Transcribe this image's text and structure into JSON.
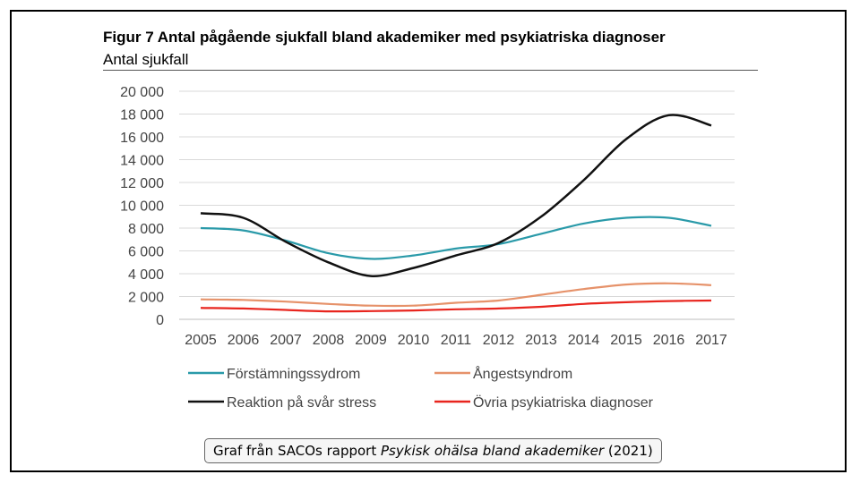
{
  "caption": {
    "prefix": "Graf från SACOs rapport",
    "report_title": "Psykisk ohälsa bland akademiker",
    "suffix": "(2021)"
  },
  "chart_data": {
    "type": "line",
    "title": "Figur 7 Antal pågående sjukfall bland akademiker med psykiatriska diagnoser",
    "subtitle": "Antal sjukfall",
    "x": [
      2005,
      2006,
      2007,
      2008,
      2009,
      2010,
      2011,
      2012,
      2013,
      2014,
      2015,
      2016,
      2017
    ],
    "ylim": [
      0,
      20000
    ],
    "y_ticks": [
      0,
      2000,
      4000,
      6000,
      8000,
      10000,
      12000,
      14000,
      16000,
      18000,
      20000
    ],
    "y_tick_labels": [
      "0",
      "2 000",
      "4 000",
      "6 000",
      "8 000",
      "10 000",
      "12 000",
      "14 000",
      "16 000",
      "18 000",
      "20 000"
    ],
    "grid": "horizontal",
    "legend_position": "bottom",
    "series": [
      {
        "name": "Förstämningssydrom",
        "color": "#2a9aa9",
        "values": [
          8000,
          7800,
          6900,
          5800,
          5300,
          5600,
          6200,
          6600,
          7500,
          8400,
          8900,
          8900,
          8200
        ]
      },
      {
        "name": "Ångestsyndrom",
        "color": "#e6926a",
        "values": [
          1750,
          1700,
          1550,
          1350,
          1200,
          1200,
          1450,
          1650,
          2150,
          2650,
          3050,
          3150,
          3000
        ]
      },
      {
        "name": "Reaktion på svår stress",
        "color": "#111111",
        "values": [
          9300,
          8900,
          6800,
          5000,
          3800,
          4500,
          5600,
          6700,
          9000,
          12200,
          15800,
          17900,
          17000
        ]
      },
      {
        "name": "Övria psykiatriska diagnoser",
        "color": "#e8251e",
        "values": [
          1000,
          950,
          820,
          700,
          720,
          780,
          880,
          950,
          1100,
          1350,
          1500,
          1600,
          1650
        ]
      }
    ]
  }
}
